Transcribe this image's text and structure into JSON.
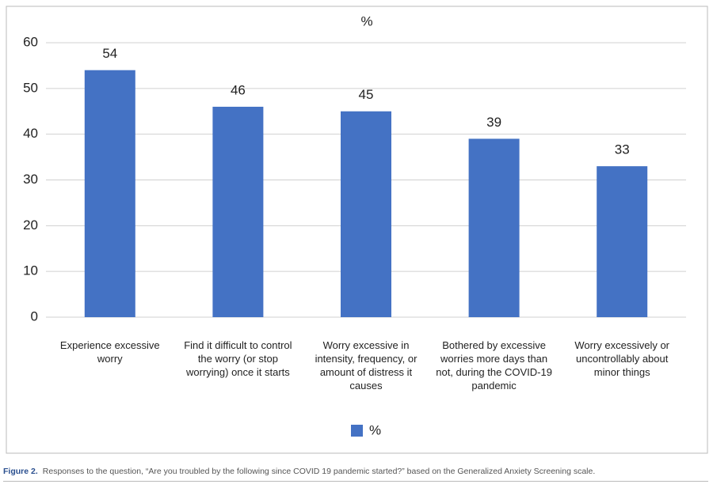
{
  "chart_data": {
    "type": "bar",
    "title": "%",
    "categories": [
      "Experience excessive worry",
      "Find it difficult to control the worry (or stop worrying) once it starts",
      "Worry excessive in intensity, frequency, or amount of distress it causes",
      "Bothered by excessive worries more days than not, during the COVID-19 pandemic",
      "Worry excessively or uncontrollably about minor things"
    ],
    "series": [
      {
        "name": "%",
        "color": "#4472c4",
        "values": [
          54,
          46,
          45,
          39,
          33
        ]
      }
    ],
    "ylim": [
      0,
      60
    ],
    "yticks": [
      0,
      10,
      20,
      30,
      40,
      50,
      60
    ],
    "grid": true,
    "legend": "bottom"
  },
  "caption": {
    "label": "Figure 2.",
    "text": "Responses to the question, “Are you troubled by the following since COVID 19 pandemic started?” based on the Generalized Anxiety Screening scale."
  }
}
